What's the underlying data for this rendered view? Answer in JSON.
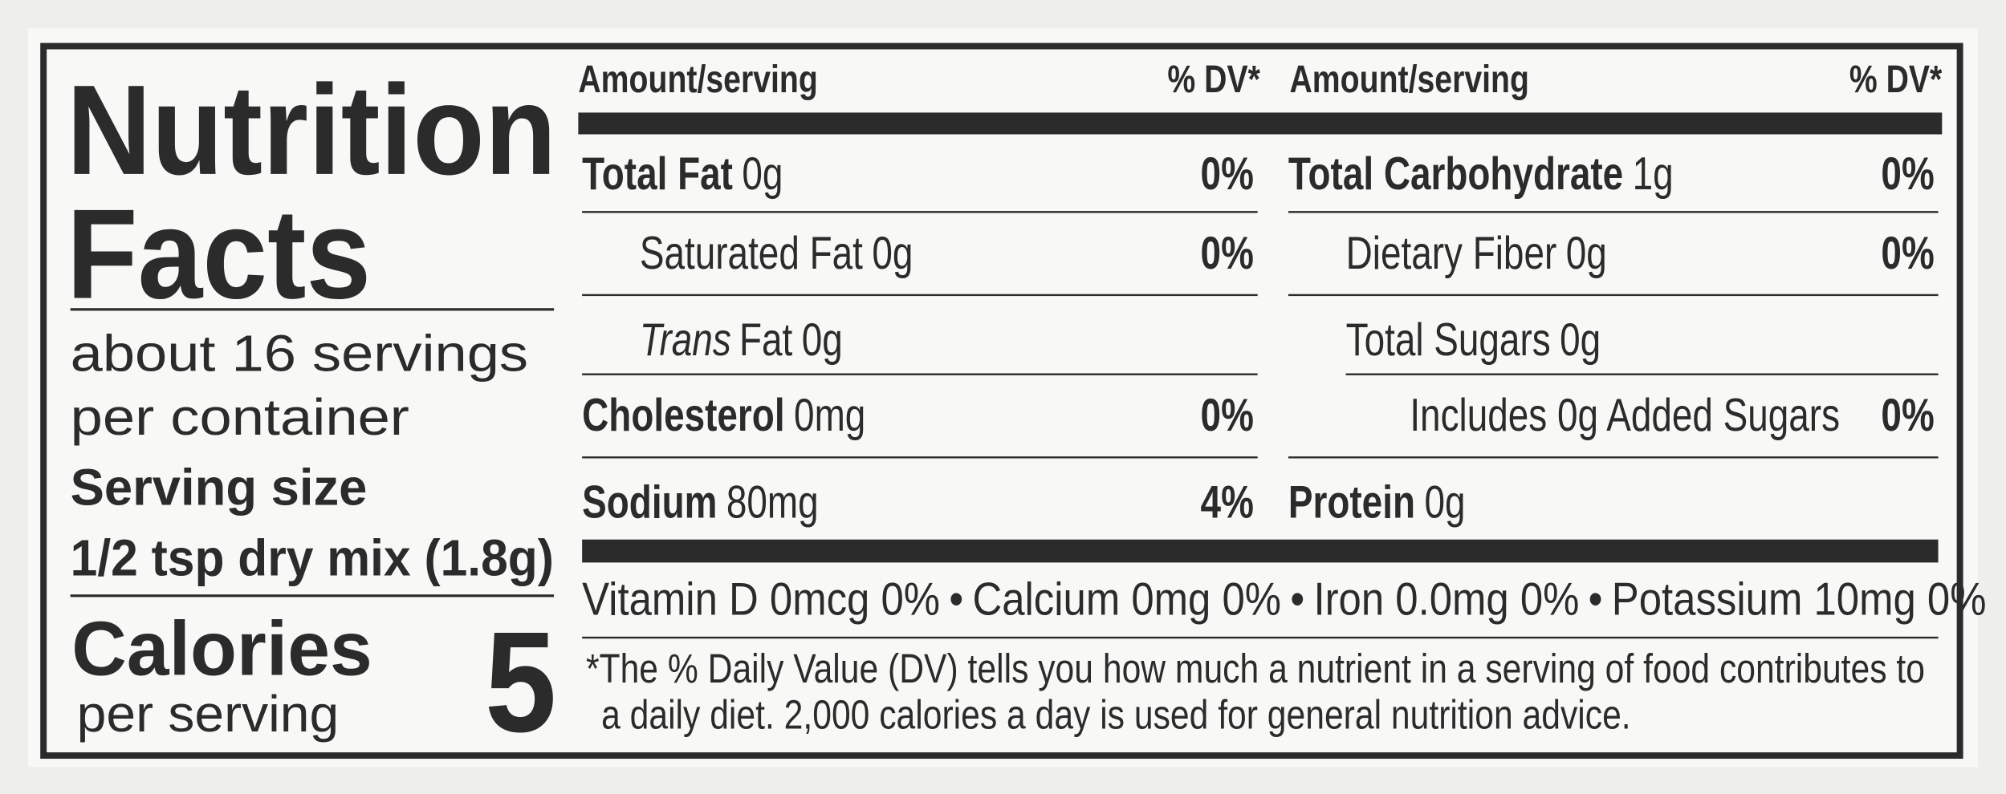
{
  "title": [
    "Nutrition",
    "Facts"
  ],
  "servings": [
    "about 16 servings",
    "per container"
  ],
  "serving_size_label": "Serving size",
  "serving_size": "1/2 tsp dry mix (1.8g)",
  "calories_label": "Calories",
  "calories_sub": "per serving",
  "calories": 5,
  "columns": [
    {
      "header_amount": "Amount/serving",
      "header_dv": "% DV*",
      "rows": [
        {
          "label": "Total Fat",
          "amount": "0g",
          "dv": "0%",
          "style": "bold",
          "level": 0
        },
        {
          "label": "Saturated Fat",
          "amount": "0g",
          "dv": "0%",
          "style": "regular",
          "level": 1
        },
        {
          "label": "Trans",
          "label_rest": "Fat",
          "amount": "0g",
          "style": "italic",
          "level": 1
        },
        {
          "label": "Cholesterol",
          "amount": "0mg",
          "dv": "0%",
          "style": "bold",
          "level": 0
        },
        {
          "label": "Sodium",
          "amount": "80mg",
          "dv": "4%",
          "style": "bold",
          "level": 0
        }
      ]
    },
    {
      "header_amount": "Amount/serving",
      "header_dv": "% DV*",
      "rows": [
        {
          "label": "Total Carbohydrate",
          "amount": "1g",
          "dv": "0%",
          "style": "bold",
          "level": 0
        },
        {
          "label": "Dietary Fiber",
          "amount": "0g",
          "dv": "0%",
          "style": "regular",
          "level": 1
        },
        {
          "label": "Total Sugars",
          "amount": "0g",
          "style": "regular",
          "level": 1
        },
        {
          "label": "Includes 0g Added Sugars",
          "dv": "0%",
          "style": "regular",
          "level": 2
        },
        {
          "label": "Protein",
          "amount": "0g",
          "style": "bold",
          "level": 0
        }
      ]
    }
  ],
  "vitamins": [
    "Vitamin D 0mcg 0%",
    "Calcium 0mg 0%",
    "Iron 0.0mg 0%",
    "Potassium 10mg 0%"
  ],
  "separator": "•",
  "footnote": [
    "*The % Daily Value (DV) tells you how much a nutrient in a serving of food contributes to",
    "a daily diet. 2,000 calories a day is used for general nutrition advice."
  ]
}
